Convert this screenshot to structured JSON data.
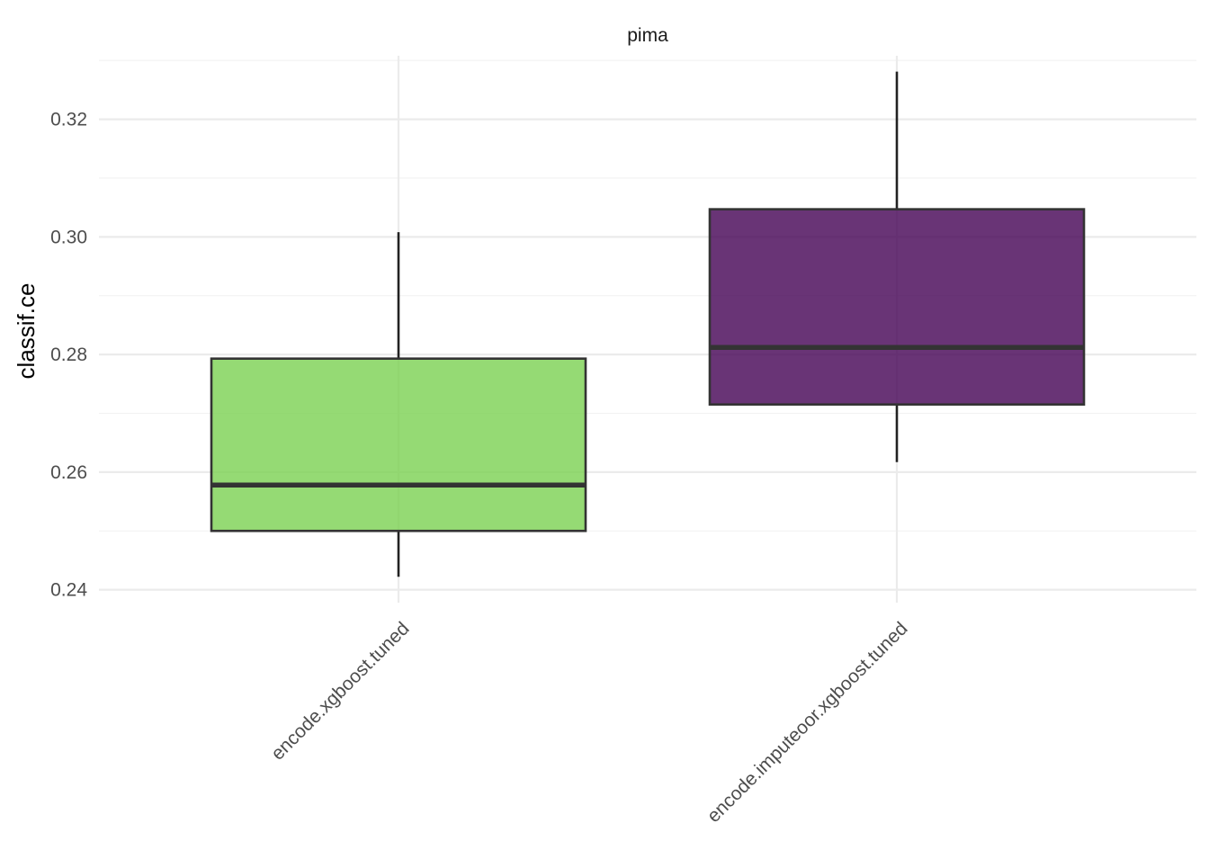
{
  "chart_data": {
    "type": "boxplot",
    "title": "",
    "facet": "pima",
    "xlabel": "",
    "ylabel": "classif.ce",
    "ylim": [
      0.2378,
      0.3308
    ],
    "yticks": [
      "0.24",
      "0.26",
      "0.28",
      "0.30",
      "0.32"
    ],
    "grid": true,
    "legend": "none",
    "categories": [
      "encode.xgboost.tuned",
      "encode.imputeoor.xgboost.tuned"
    ],
    "boxes": [
      {
        "category": "encode.xgboost.tuned",
        "min": 0.2422,
        "q1": 0.25,
        "median": 0.2578,
        "q3": 0.2793,
        "max": 0.3008,
        "color": "#7ad151"
      },
      {
        "category": "encode.imputeoor.xgboost.tuned",
        "min": 0.2617,
        "q1": 0.2715,
        "median": 0.2812,
        "q3": 0.3047,
        "max": 0.3281,
        "color": "#440154"
      }
    ]
  }
}
